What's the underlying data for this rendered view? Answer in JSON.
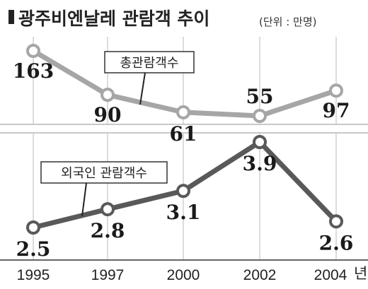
{
  "header": {
    "title": "광주비엔날레 관람객 추이",
    "unit": "(단위 : 만명)"
  },
  "chart_data": {
    "type": "line",
    "title": "광주비엔날레 관람객 추이",
    "unit": "(단위 : 만명)",
    "x": [
      "1995",
      "1997",
      "2000",
      "2002",
      "2004"
    ],
    "x_suffix": "년",
    "series": [
      {
        "name": "총관람객수",
        "values": [
          163,
          90,
          61,
          55,
          97
        ],
        "labels": [
          "163",
          "90",
          "61",
          "55",
          "97"
        ],
        "color": "#a6a6a6"
      },
      {
        "name": "외국인 관람객수",
        "values": [
          2.5,
          2.8,
          3.1,
          3.9,
          2.6
        ],
        "labels": [
          "2.5",
          "2.8",
          "3.1",
          "3.9",
          "2.6"
        ],
        "color": "#595959"
      }
    ],
    "grid": true
  }
}
